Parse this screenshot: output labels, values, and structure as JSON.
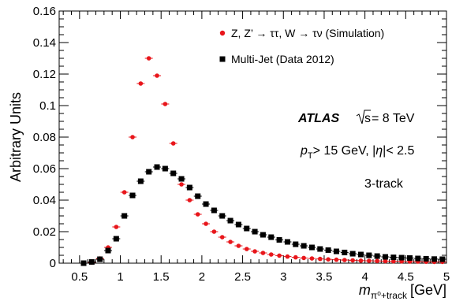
{
  "chart_data": {
    "type": "scatter",
    "ylabel": "Arbitrary Units",
    "xlabel_main": "m",
    "xlabel_sub": "π⁰+track",
    "xlabel_unit": "[GeV]",
    "xlim": [
      0.25,
      5.0
    ],
    "ylim": [
      0,
      0.16
    ],
    "x_ticks": [
      0.5,
      1,
      1.5,
      2,
      2.5,
      3,
      3.5,
      4,
      4.5,
      5
    ],
    "x_tick_labels": [
      "0.5",
      "1",
      "1.5",
      "2",
      "2.5",
      "3",
      "3.5",
      "4",
      "4.5",
      "5"
    ],
    "y_ticks": [
      0,
      0.02,
      0.04,
      0.06,
      0.08,
      0.1,
      0.12,
      0.14,
      0.16
    ],
    "y_tick_labels": [
      "0",
      "0.02",
      "0.04",
      "0.06",
      "0.08",
      "0.1",
      "0.12",
      "0.14",
      "0.16"
    ],
    "grid": false,
    "legend_position": "top-right",
    "series": [
      {
        "name": "Z, Z’ → ττ, W → τν (Simulation)",
        "color": "#e8161b",
        "marker": "circle",
        "x": [
          0.55,
          0.65,
          0.75,
          0.85,
          0.95,
          1.05,
          1.15,
          1.25,
          1.35,
          1.45,
          1.55,
          1.65,
          1.75,
          1.85,
          1.95,
          2.05,
          2.15,
          2.25,
          2.35,
          2.45,
          2.55,
          2.65,
          2.75,
          2.85,
          2.95,
          3.05,
          3.15,
          3.25,
          3.35,
          3.45,
          3.55,
          3.65,
          3.75,
          3.85,
          3.95,
          4.05,
          4.15,
          4.25,
          4.35,
          4.45,
          4.55,
          4.65,
          4.75,
          4.85,
          4.95
        ],
        "y": [
          0.0,
          0.0005,
          0.003,
          0.01,
          0.023,
          0.045,
          0.08,
          0.114,
          0.13,
          0.119,
          0.101,
          0.076,
          0.05,
          0.04,
          0.031,
          0.025,
          0.02,
          0.0165,
          0.0135,
          0.011,
          0.009,
          0.0075,
          0.0065,
          0.0055,
          0.0048,
          0.0042,
          0.0037,
          0.0033,
          0.003,
          0.0027,
          0.0024,
          0.0022,
          0.002,
          0.0018,
          0.0016,
          0.0015,
          0.0014,
          0.0013,
          0.0012,
          0.0011,
          0.001,
          0.001,
          0.0009,
          0.0008,
          0.0008
        ]
      },
      {
        "name": "Multi-Jet (Data 2012)",
        "color": "#000000",
        "marker": "square",
        "x": [
          0.55,
          0.65,
          0.75,
          0.85,
          0.95,
          1.05,
          1.15,
          1.25,
          1.35,
          1.45,
          1.55,
          1.65,
          1.75,
          1.85,
          1.95,
          2.05,
          2.15,
          2.25,
          2.35,
          2.45,
          2.55,
          2.65,
          2.75,
          2.85,
          2.95,
          3.05,
          3.15,
          3.25,
          3.35,
          3.45,
          3.55,
          3.65,
          3.75,
          3.85,
          3.95,
          4.05,
          4.15,
          4.25,
          4.35,
          4.45,
          4.55,
          4.65,
          4.75,
          4.85,
          4.95
        ],
        "y": [
          0.0,
          0.0008,
          0.0025,
          0.008,
          0.0155,
          0.03,
          0.043,
          0.052,
          0.058,
          0.061,
          0.06,
          0.057,
          0.0535,
          0.048,
          0.0425,
          0.0375,
          0.0335,
          0.03,
          0.027,
          0.0245,
          0.022,
          0.02,
          0.018,
          0.0165,
          0.0148,
          0.0135,
          0.012,
          0.011,
          0.01,
          0.009,
          0.0083,
          0.0075,
          0.0068,
          0.006,
          0.0055,
          0.005,
          0.0045,
          0.004,
          0.0037,
          0.0035,
          0.0033,
          0.003,
          0.0028,
          0.0026,
          0.0025
        ]
      }
    ],
    "annotations": {
      "atlas": "ATLAS",
      "sqrt_s": "s",
      "energy": " = 8 TeV",
      "pt_p": "p",
      "pt_sub": "T",
      "pt_rest": "> 15 GeV, |",
      "eta": "η",
      "eta_rest": "|< 2.5",
      "track": "3-track"
    }
  }
}
